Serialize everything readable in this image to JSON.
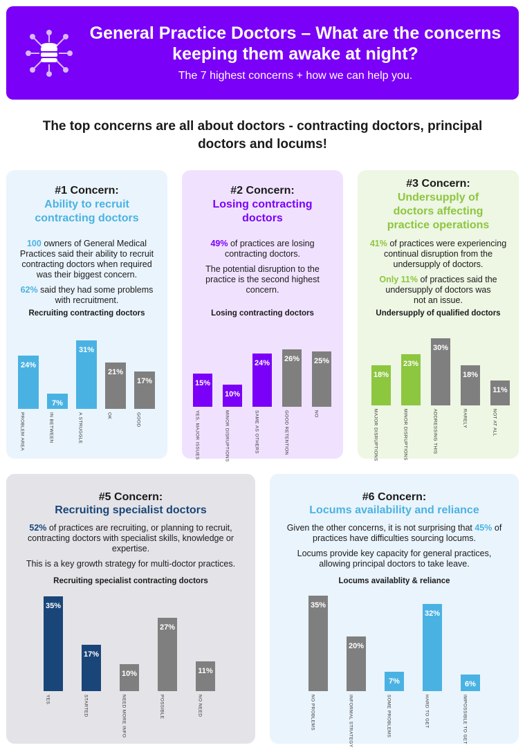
{
  "header": {
    "title": "General Practice Doctors – What are the concerns keeping them awake at night?",
    "subtitle": "The 7 highest concerns + how we can help you."
  },
  "intro": "The top concerns are all about doctors - contracting doctors, principal doctors and locums!",
  "colors": {
    "blue": "#4ab2e3",
    "purple": "#7a00f7",
    "green": "#8dc63f",
    "navy": "#1a4578",
    "grey": "#7f7f7f"
  },
  "cards": [
    {
      "number": "#1 Concern:",
      "subtitle": "Ability to recruit contracting doctors",
      "p1_hl": "100",
      "p1": " owners of General Medical Practices said their ability to recruit contracting doctors when required was their biggest concern.",
      "p2_hl": "62%",
      "p2": " said they had some problems with recruitment.",
      "chart_title": "Recruiting contracting doctors"
    },
    {
      "number": "#2 Concern:",
      "subtitle": "Losing contracting doctors",
      "p1_hl": "49%",
      "p1": " of practices are losing contracting doctors.",
      "p2": "The potential disruption to the practice is the second highest concern.",
      "chart_title": "Losing contracting doctors"
    },
    {
      "number": "#3 Concern:",
      "subtitle": "Undersupply of doctors affecting practice operations",
      "p1_hl": "41%",
      "p1": " of practices were experiencing continual disruption from the undersupply of doctors.",
      "p2_hl": "Only 11%",
      "p2": " of practices said the undersupply of doctors was not an issue.",
      "chart_title": "Undersupply of qualified doctors"
    },
    {
      "number": "#5 Concern:",
      "subtitle": "Recruiting specialist doctors",
      "p1_hl": "52%",
      "p1": " of practices are recruiting, or planning to recruit, contracting doctors with specialist skills, knowledge or expertise.",
      "p2": "This is a key growth strategy for multi-doctor practices.",
      "chart_title": "Recruiting specialist contracting doctors"
    },
    {
      "number": "#6 Concern:",
      "subtitle": "Locums availability and reliance",
      "p1_pre": "Given the other concerns, it is not surprising that ",
      "p1_hl": "45%",
      "p1": " of practices have difficulties sourcing locums.",
      "p2": "Locums provide key capacity for general practices, allowing principal doctors to take leave.",
      "chart_title": "Locums availablity & reliance"
    }
  ],
  "chart_data": [
    {
      "type": "bar",
      "title": "Recruiting contracting doctors",
      "categories": [
        "PROBLEM AREA",
        "IN BETWEEN",
        "A STRUGGLE",
        "OK",
        "GOOD"
      ],
      "values": [
        24,
        7,
        31,
        21,
        17
      ],
      "labels": [
        "24%",
        "7%",
        "31%",
        "21%",
        "17%"
      ],
      "colors": [
        "#4ab2e3",
        "#4ab2e3",
        "#4ab2e3",
        "#7f7f7f",
        "#7f7f7f"
      ],
      "ylim": [
        0,
        35
      ]
    },
    {
      "type": "bar",
      "title": "Losing contracting doctors",
      "categories": [
        "YES, MAJOR ISSUES",
        "MINOR DISRUPTIONS",
        "SAME AS OTHERS",
        "GOOD RETENTION",
        "NO"
      ],
      "values": [
        15,
        10,
        24,
        26,
        25
      ],
      "labels": [
        "15%",
        "10%",
        "24%",
        "26%",
        "25%"
      ],
      "colors": [
        "#7a00f7",
        "#7a00f7",
        "#7a00f7",
        "#7f7f7f",
        "#7f7f7f"
      ],
      "ylim": [
        0,
        35
      ]
    },
    {
      "type": "bar",
      "title": "Undersupply of qualified doctors",
      "categories": [
        "MAJOR DISRUPTIONS",
        "MINOR DISRUPTIONS",
        "ADDRESSING THIS",
        "RARELY",
        "NOT AT ALL"
      ],
      "values": [
        18,
        23,
        30,
        18,
        11
      ],
      "labels": [
        "18%",
        "23%",
        "30%",
        "18%",
        "11%"
      ],
      "colors": [
        "#8dc63f",
        "#8dc63f",
        "#7f7f7f",
        "#7f7f7f",
        "#7f7f7f"
      ],
      "ylim": [
        0,
        35
      ]
    },
    {
      "type": "bar",
      "title": "Recruiting specialist contracting doctors",
      "categories": [
        "YES",
        "STARTED",
        "NEED MORE INFO",
        "POSSIBLE",
        "NO NEED"
      ],
      "values": [
        35,
        17,
        10,
        27,
        11
      ],
      "labels": [
        "35%",
        "17%",
        "10%",
        "27%",
        "11%"
      ],
      "colors": [
        "#1a4578",
        "#1a4578",
        "#7f7f7f",
        "#7f7f7f",
        "#7f7f7f"
      ],
      "ylim": [
        0,
        35
      ]
    },
    {
      "type": "bar",
      "title": "Locums availablity & reliance",
      "categories": [
        "NO PROBLEMS",
        "INFORMAL STRATEGY",
        "SOME PROBLEMS",
        "HARD TO GET",
        "IMPOSSIBLE TO GET"
      ],
      "values": [
        35,
        20,
        7,
        32,
        6
      ],
      "labels": [
        "35%",
        "20%",
        "7%",
        "32%",
        "6%"
      ],
      "colors": [
        "#7f7f7f",
        "#7f7f7f",
        "#4ab2e3",
        "#4ab2e3",
        "#4ab2e3"
      ],
      "ylim": [
        0,
        35
      ]
    }
  ]
}
